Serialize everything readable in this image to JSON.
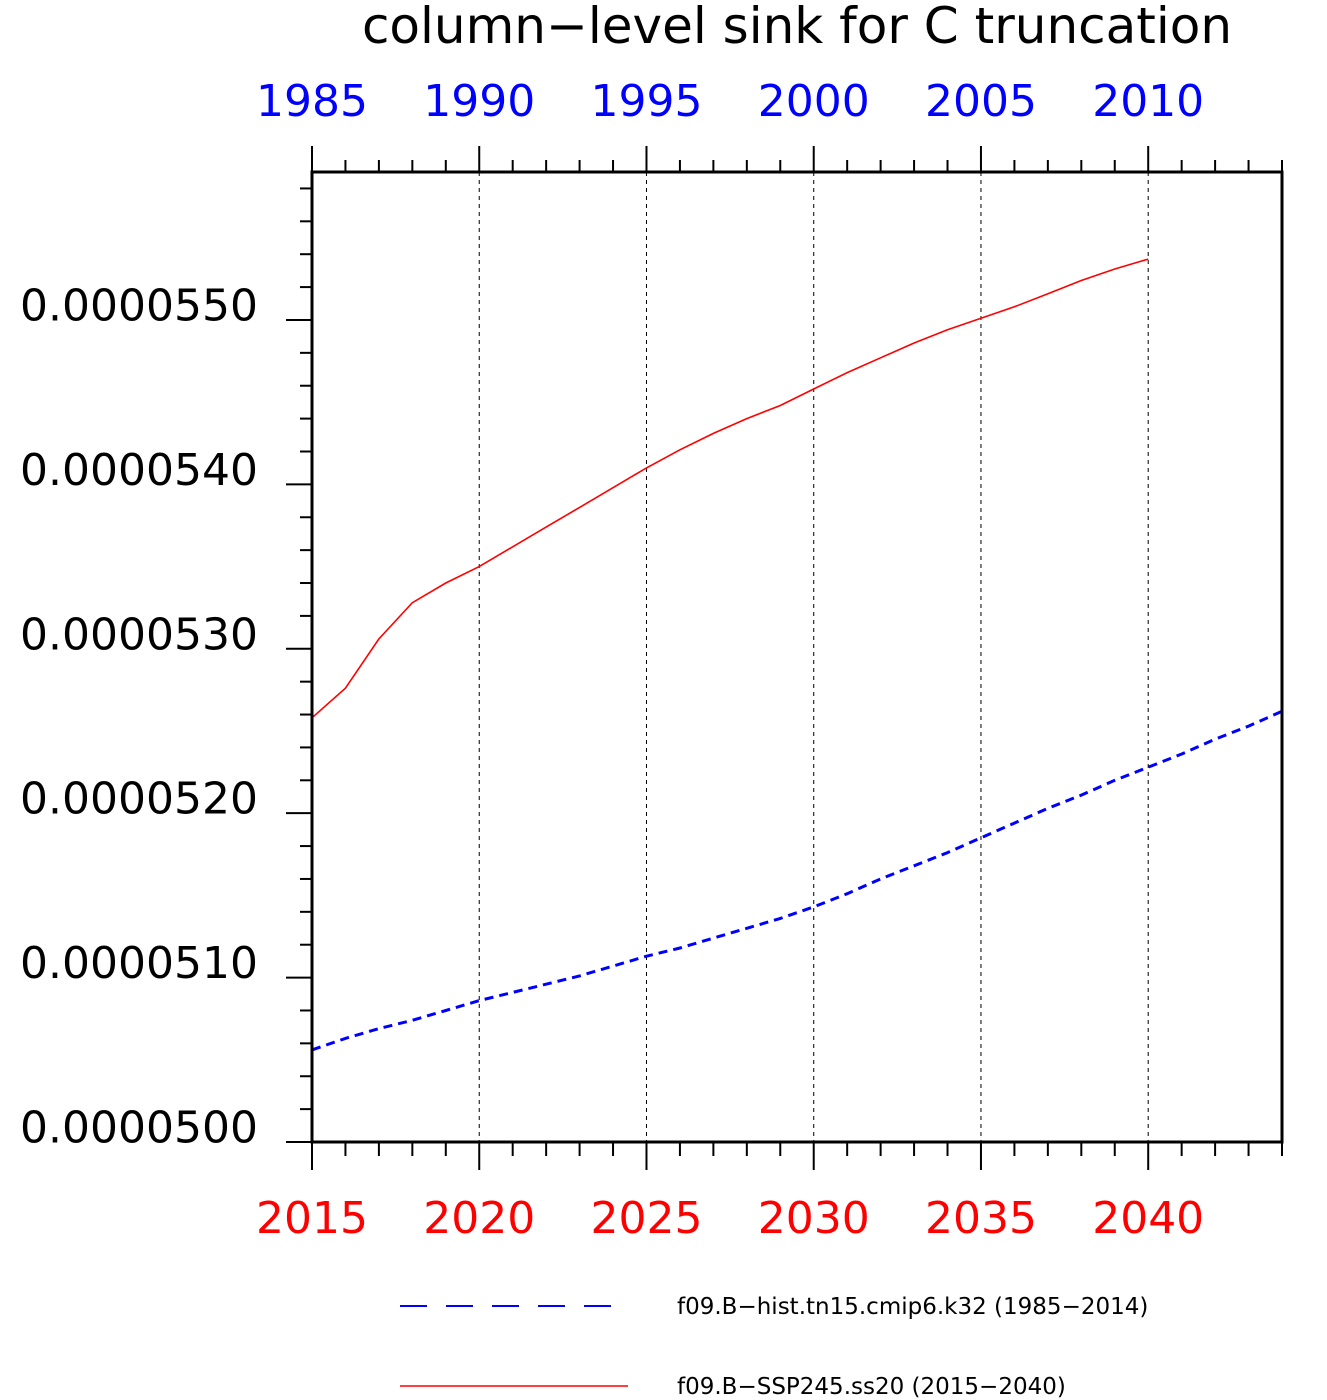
{
  "chart_data": {
    "type": "line",
    "title": "column−level sink for C truncation",
    "xlabel": "",
    "ylabel": "",
    "x_axes": {
      "bottom": {
        "color": "#ff0000",
        "range": [
          2015,
          2044
        ],
        "tick_labels": [
          "2015",
          "2020",
          "2025",
          "2030",
          "2035",
          "2040"
        ]
      },
      "top": {
        "color": "#0000ff",
        "range": [
          1985,
          2014
        ],
        "tick_labels": [
          "1985",
          "1990",
          "1995",
          "2000",
          "2005",
          "2010"
        ]
      }
    },
    "y_axis": {
      "range": [
        4.99e-05,
        5.58e-05
      ],
      "tick_labels": [
        "0.0000500",
        "0.0000510",
        "0.0000520",
        "0.0000530",
        "0.0000540",
        "0.0000550"
      ]
    },
    "grid": "vertical dashed at labeled major x ticks",
    "series": [
      {
        "name": "f09.B−hist.tn15.cmip6.k32 (1985−2014)",
        "color": "#0000ff",
        "style": "dashed",
        "axis": "top",
        "x": [
          1985,
          1986,
          1987,
          1988,
          1989,
          1990,
          1991,
          1992,
          1993,
          1994,
          1995,
          1996,
          1997,
          1998,
          1999,
          2000,
          2001,
          2002,
          2003,
          2004,
          2005,
          2006,
          2007,
          2008,
          2009,
          2010,
          2011,
          2012,
          2013,
          2014
        ],
        "y": [
          5.046e-05,
          5.053e-05,
          5.059e-05,
          5.064e-05,
          5.07e-05,
          5.076e-05,
          5.081e-05,
          5.086e-05,
          5.091e-05,
          5.097e-05,
          5.103e-05,
          5.108e-05,
          5.114e-05,
          5.12e-05,
          5.126e-05,
          5.133e-05,
          5.141e-05,
          5.15e-05,
          5.158e-05,
          5.166e-05,
          5.175e-05,
          5.184e-05,
          5.193e-05,
          5.201e-05,
          5.21e-05,
          5.218e-05,
          5.226e-05,
          5.235e-05,
          5.243e-05,
          5.252e-05
        ]
      },
      {
        "name": "f09.B−SSP245.ss20 (2015−2040)",
        "color": "#ff0000",
        "style": "solid",
        "axis": "bottom",
        "x": [
          2015,
          2016,
          2017,
          2018,
          2019,
          2020,
          2021,
          2022,
          2023,
          2024,
          2025,
          2026,
          2027,
          2028,
          2029,
          2030,
          2031,
          2032,
          2033,
          2034,
          2035,
          2036,
          2037,
          2038,
          2039,
          2040
        ],
        "y": [
          5.248e-05,
          5.266e-05,
          5.296e-05,
          5.318e-05,
          5.33e-05,
          5.34e-05,
          5.352e-05,
          5.364e-05,
          5.376e-05,
          5.388e-05,
          5.4e-05,
          5.411e-05,
          5.421e-05,
          5.43e-05,
          5.438e-05,
          5.448e-05,
          5.458e-05,
          5.467e-05,
          5.476e-05,
          5.484e-05,
          5.491e-05,
          5.498e-05,
          5.506e-05,
          5.514e-05,
          5.521e-05,
          5.527e-05
        ]
      }
    ],
    "legend": {
      "placement": "bottom",
      "entries": [
        "f09.B−hist.tn15.cmip6.k32 (1985−2014)",
        "f09.B−SSP245.ss20 (2015−2040)"
      ]
    }
  }
}
